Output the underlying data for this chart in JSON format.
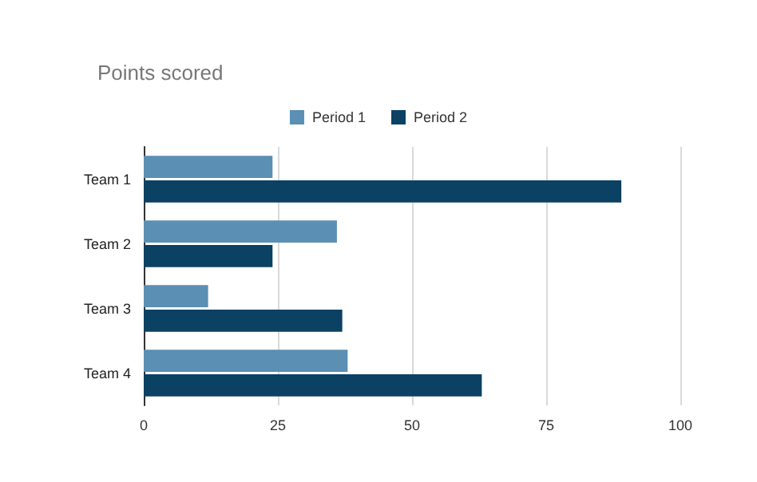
{
  "chart_data": {
    "type": "bar",
    "orientation": "horizontal",
    "title": "Points scored",
    "categories": [
      "Team 1",
      "Team 2",
      "Team 3",
      "Team 4"
    ],
    "series": [
      {
        "name": "Period 1",
        "color": "#5b8fb4",
        "values": [
          24,
          36,
          12,
          38
        ]
      },
      {
        "name": "Period 2",
        "color": "#0b4163",
        "values": [
          89,
          24,
          37,
          63
        ]
      }
    ],
    "xlim": [
      0,
      100
    ],
    "xticks": [
      0,
      25,
      50,
      75,
      100
    ],
    "grid": "x",
    "legend": "top"
  }
}
